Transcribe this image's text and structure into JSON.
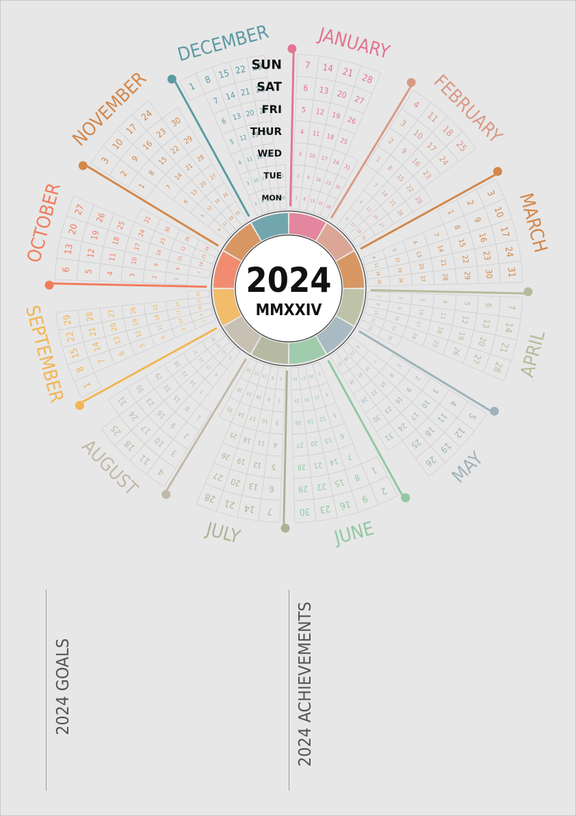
{
  "calendar": {
    "year": "2024",
    "year_roman": "MMXXIV",
    "weekday_labels": [
      "MON",
      "TUE",
      "WED",
      "THUR",
      "FRI",
      "SAT",
      "SUN"
    ],
    "months": [
      {
        "name": "JANUARY",
        "color": "#e27491",
        "days": 31,
        "start_weekday": 0
      },
      {
        "name": "FEBRUARY",
        "color": "#d89a87",
        "days": 29,
        "start_weekday": 3
      },
      {
        "name": "MARCH",
        "color": "#d3874a",
        "days": 31,
        "start_weekday": 4
      },
      {
        "name": "APRIL",
        "color": "#b6bb9b",
        "days": 30,
        "start_weekday": 0
      },
      {
        "name": "MAY",
        "color": "#9fb2bb",
        "days": 31,
        "start_weekday": 2
      },
      {
        "name": "JUNE",
        "color": "#93c7a2",
        "days": 30,
        "start_weekday": 5
      },
      {
        "name": "JULY",
        "color": "#adb195",
        "days": 31,
        "start_weekday": 0
      },
      {
        "name": "AUGUST",
        "color": "#c2b8a8",
        "days": 31,
        "start_weekday": 3
      },
      {
        "name": "SEPTEMBER",
        "color": "#f2b553",
        "days": 30,
        "start_weekday": 6
      },
      {
        "name": "OCTOBER",
        "color": "#f27b5c",
        "days": 31,
        "start_weekday": 1
      },
      {
        "name": "NOVEMBER",
        "color": "#d3874a",
        "days": 30,
        "start_weekday": 4
      },
      {
        "name": "DECEMBER",
        "color": "#5c9aa3",
        "days": 31,
        "start_weekday": 6
      }
    ]
  },
  "notes": {
    "goals_label": "2024 GOALS",
    "achievements_label": "2024 ACHIEVEMENTS"
  }
}
